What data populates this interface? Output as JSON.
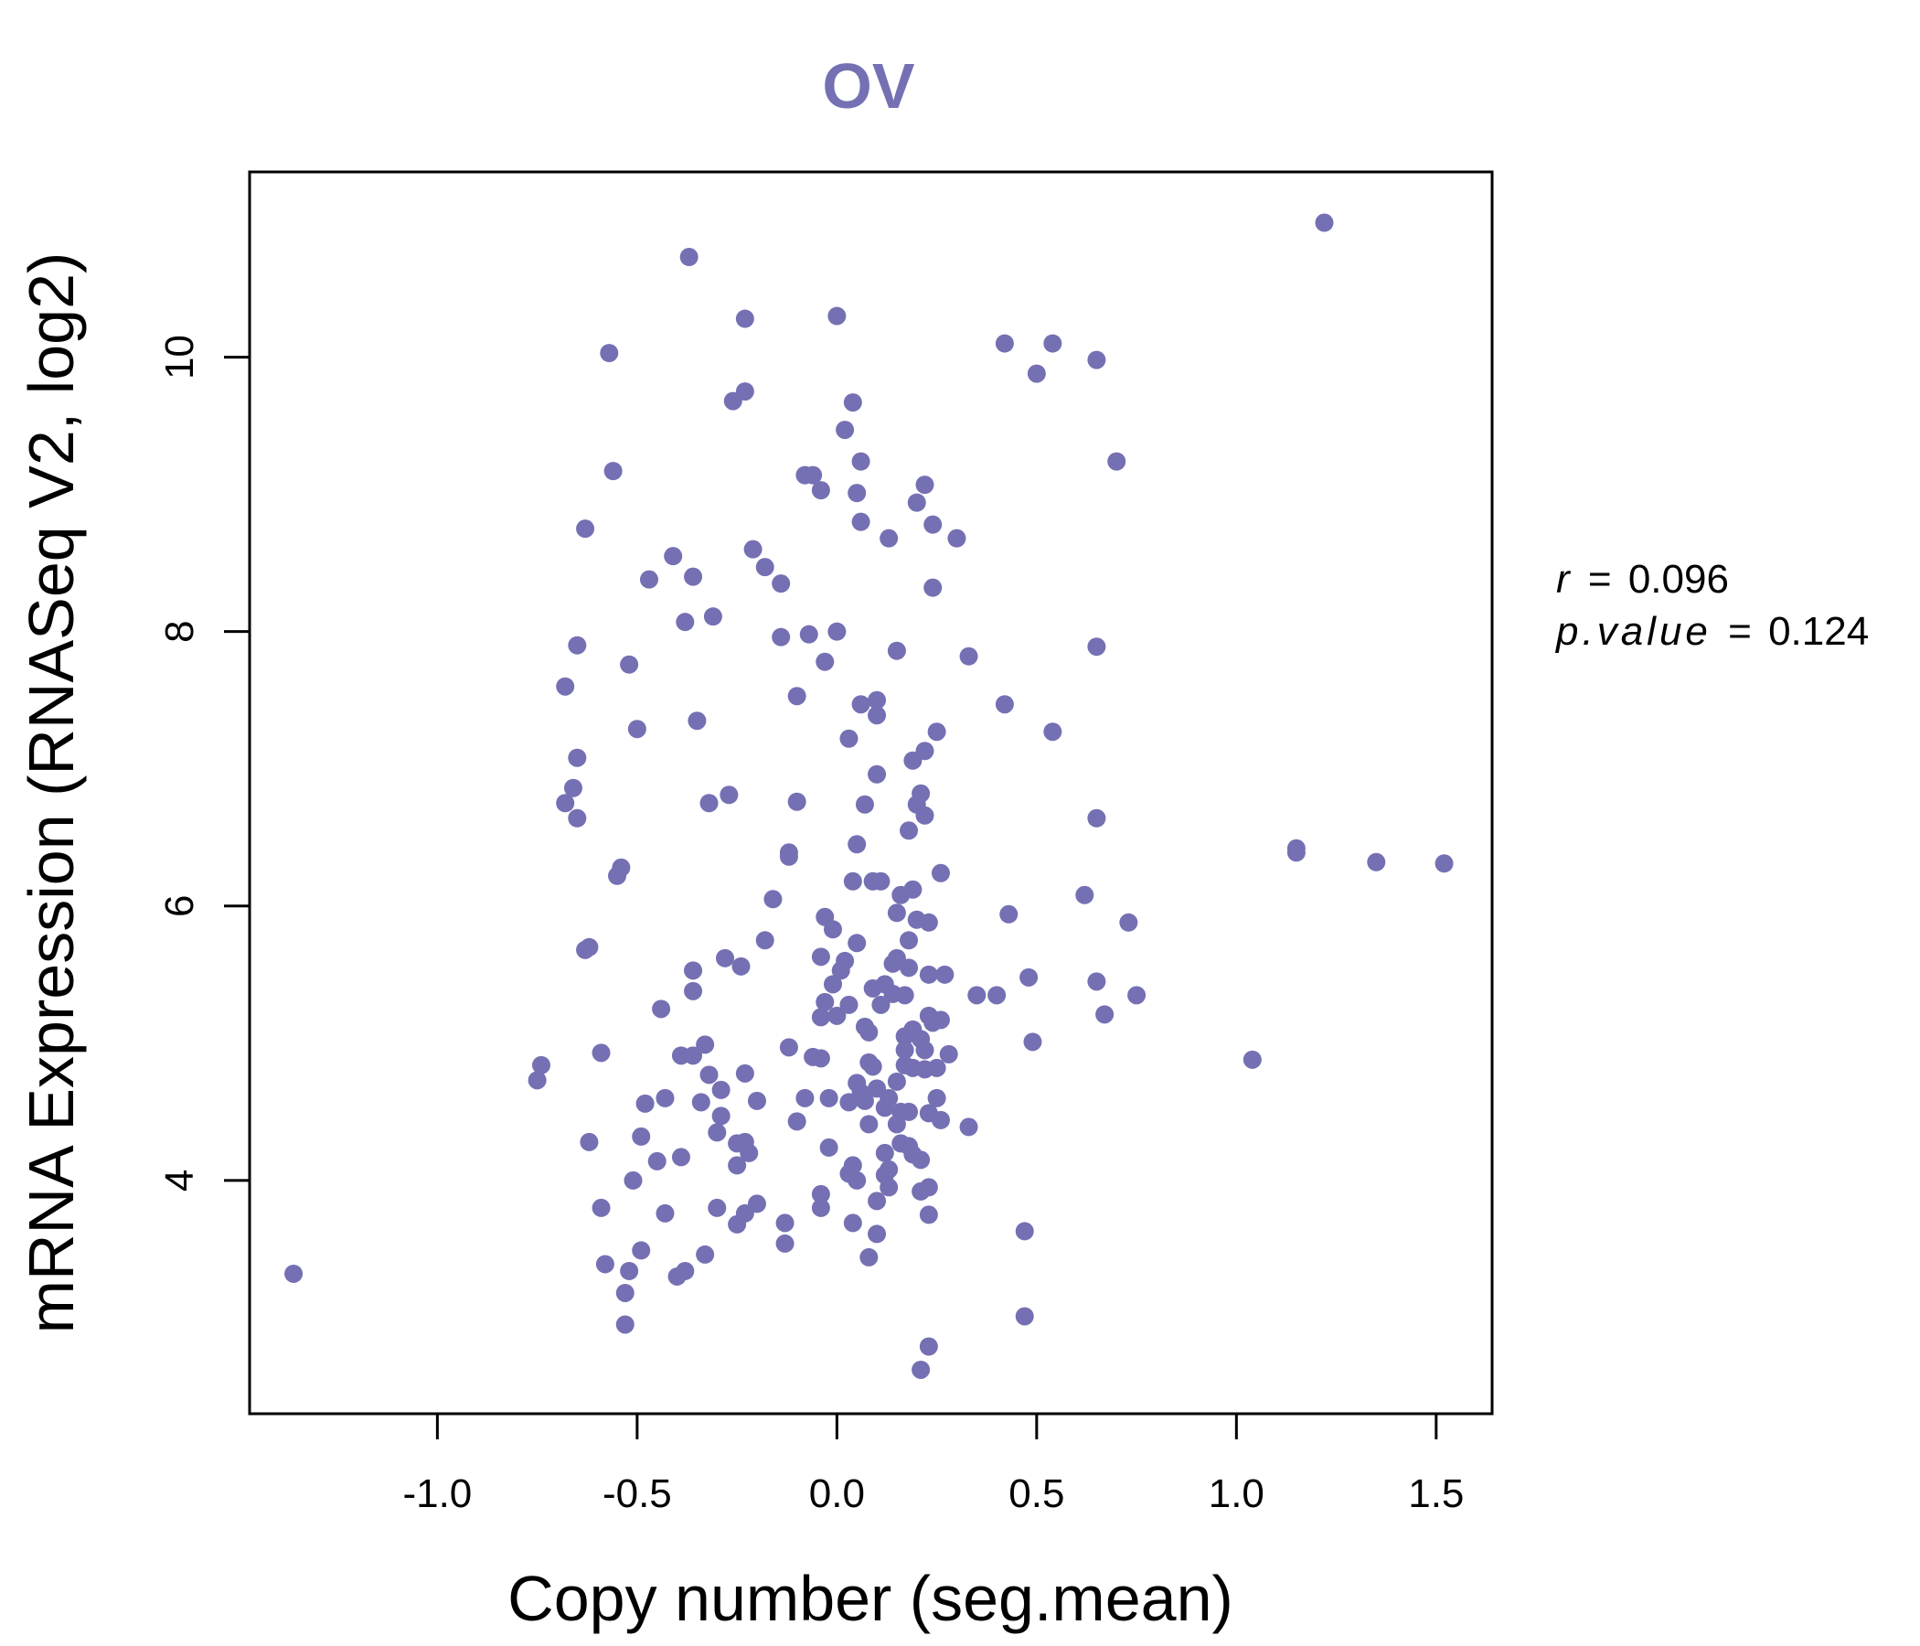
{
  "chart_data": {
    "type": "scatter",
    "title": "OV",
    "xlabel": "Copy number (seg.mean)",
    "ylabel": "mRNA Expression (RNASeq V2, log2)",
    "xlim": [
      -1.47,
      1.64
    ],
    "ylim": [
      2.3,
      11.35
    ],
    "xticks": [
      -1.0,
      -0.5,
      0.0,
      0.5,
      1.0,
      1.5
    ],
    "xtick_labels": [
      "-1.0",
      "-0.5",
      "0.0",
      "0.5",
      "1.0",
      "1.5"
    ],
    "yticks": [
      4,
      6,
      8,
      10
    ],
    "ytick_labels": [
      "4",
      "6",
      "8",
      "10"
    ],
    "grid": false,
    "point_color": "#7570B3",
    "stats": {
      "r_label": "r",
      "r_value": "0.096",
      "p_label": "p.value",
      "p_value": "0.124",
      "equals": "="
    },
    "points": [
      [
        -1.36,
        3.32
      ],
      [
        -0.75,
        4.73
      ],
      [
        -0.74,
        4.84
      ],
      [
        -0.68,
        7.6
      ],
      [
        -0.68,
        6.75
      ],
      [
        -0.66,
        6.86
      ],
      [
        -0.65,
        7.08
      ],
      [
        -0.65,
        6.64
      ],
      [
        -0.65,
        7.9
      ],
      [
        -0.63,
        8.75
      ],
      [
        -0.63,
        5.68
      ],
      [
        -0.62,
        5.7
      ],
      [
        -0.62,
        4.28
      ],
      [
        -0.59,
        4.93
      ],
      [
        -0.59,
        3.8
      ],
      [
        -0.58,
        3.39
      ],
      [
        -0.57,
        10.03
      ],
      [
        -0.56,
        9.17
      ],
      [
        -0.55,
        6.22
      ],
      [
        -0.54,
        6.28
      ],
      [
        -0.53,
        3.18
      ],
      [
        -0.53,
        2.95
      ],
      [
        -0.52,
        3.34
      ],
      [
        -0.51,
        4.0
      ],
      [
        -0.52,
        7.76
      ],
      [
        -0.5,
        7.29
      ],
      [
        -0.49,
        3.49
      ],
      [
        -0.49,
        4.32
      ],
      [
        -0.48,
        4.56
      ],
      [
        -0.47,
        8.38
      ],
      [
        -0.45,
        4.14
      ],
      [
        -0.44,
        5.25
      ],
      [
        -0.43,
        4.6
      ],
      [
        -0.43,
        3.76
      ],
      [
        -0.41,
        8.55
      ],
      [
        -0.4,
        3.3
      ],
      [
        -0.39,
        4.17
      ],
      [
        -0.39,
        4.91
      ],
      [
        -0.38,
        3.34
      ],
      [
        -0.38,
        8.07
      ],
      [
        -0.37,
        10.73
      ],
      [
        -0.36,
        4.91
      ],
      [
        -0.36,
        8.4
      ],
      [
        -0.36,
        5.38
      ],
      [
        -0.36,
        5.53
      ],
      [
        -0.35,
        7.35
      ],
      [
        -0.34,
        4.57
      ],
      [
        -0.33,
        3.46
      ],
      [
        -0.33,
        4.99
      ],
      [
        -0.32,
        4.77
      ],
      [
        -0.32,
        6.75
      ],
      [
        -0.31,
        8.11
      ],
      [
        -0.3,
        3.8
      ],
      [
        -0.3,
        4.35
      ],
      [
        -0.29,
        4.47
      ],
      [
        -0.29,
        4.66
      ],
      [
        -0.28,
        5.62
      ],
      [
        -0.27,
        6.81
      ],
      [
        -0.26,
        9.68
      ],
      [
        -0.25,
        3.68
      ],
      [
        -0.25,
        4.27
      ],
      [
        -0.25,
        4.11
      ],
      [
        -0.24,
        5.56
      ],
      [
        -0.23,
        10.28
      ],
      [
        -0.23,
        4.78
      ],
      [
        -0.23,
        4.28
      ],
      [
        -0.23,
        3.76
      ],
      [
        -0.23,
        9.75
      ],
      [
        -0.22,
        4.2
      ],
      [
        -0.21,
        8.6
      ],
      [
        -0.2,
        3.83
      ],
      [
        -0.2,
        4.58
      ],
      [
        -0.18,
        8.47
      ],
      [
        -0.18,
        5.75
      ],
      [
        -0.16,
        6.05
      ],
      [
        -0.14,
        7.96
      ],
      [
        -0.14,
        8.35
      ],
      [
        -0.13,
        3.54
      ],
      [
        -0.13,
        3.69
      ],
      [
        -0.12,
        4.97
      ],
      [
        -0.12,
        6.36
      ],
      [
        -0.12,
        6.39
      ],
      [
        -0.1,
        6.76
      ],
      [
        -0.1,
        4.43
      ],
      [
        -0.1,
        7.53
      ],
      [
        -0.08,
        4.6
      ],
      [
        -0.08,
        9.14
      ],
      [
        -0.07,
        7.98
      ],
      [
        -0.06,
        9.14
      ],
      [
        -0.06,
        4.9
      ],
      [
        -0.04,
        3.8
      ],
      [
        -0.04,
        3.9
      ],
      [
        -0.04,
        5.63
      ],
      [
        -0.04,
        5.19
      ],
      [
        -0.04,
        9.03
      ],
      [
        -0.04,
        4.89
      ],
      [
        -0.03,
        5.92
      ],
      [
        -0.03,
        7.78
      ],
      [
        -0.03,
        5.3
      ],
      [
        -0.02,
        4.6
      ],
      [
        -0.02,
        4.24
      ],
      [
        -0.01,
        5.43
      ],
      [
        -0.01,
        5.83
      ],
      [
        0.0,
        5.2
      ],
      [
        0.0,
        8.0
      ],
      [
        0.0,
        10.3
      ],
      [
        0.01,
        5.53
      ],
      [
        0.02,
        5.6
      ],
      [
        0.02,
        9.47
      ],
      [
        0.03,
        5.28
      ],
      [
        0.03,
        4.57
      ],
      [
        0.03,
        4.05
      ],
      [
        0.03,
        7.22
      ],
      [
        0.04,
        9.67
      ],
      [
        0.04,
        4.11
      ],
      [
        0.04,
        3.69
      ],
      [
        0.04,
        6.18
      ],
      [
        0.05,
        9.01
      ],
      [
        0.05,
        5.73
      ],
      [
        0.05,
        4.71
      ],
      [
        0.05,
        6.45
      ],
      [
        0.05,
        4.0
      ],
      [
        0.06,
        4.64
      ],
      [
        0.06,
        9.24
      ],
      [
        0.06,
        7.47
      ],
      [
        0.06,
        8.8
      ],
      [
        0.07,
        6.74
      ],
      [
        0.07,
        5.12
      ],
      [
        0.07,
        4.58
      ],
      [
        0.08,
        3.44
      ],
      [
        0.08,
        5.08
      ],
      [
        0.08,
        4.41
      ],
      [
        0.08,
        4.86
      ],
      [
        0.09,
        4.83
      ],
      [
        0.09,
        5.4
      ],
      [
        0.09,
        6.18
      ],
      [
        0.1,
        7.5
      ],
      [
        0.1,
        7.39
      ],
      [
        0.1,
        6.96
      ],
      [
        0.1,
        4.67
      ],
      [
        0.1,
        3.85
      ],
      [
        0.1,
        3.61
      ],
      [
        0.11,
        5.28
      ],
      [
        0.11,
        6.18
      ],
      [
        0.12,
        4.53
      ],
      [
        0.12,
        5.43
      ],
      [
        0.12,
        4.2
      ],
      [
        0.12,
        4.04
      ],
      [
        0.13,
        4.08
      ],
      [
        0.13,
        3.95
      ],
      [
        0.13,
        4.6
      ],
      [
        0.13,
        8.68
      ],
      [
        0.14,
        5.36
      ],
      [
        0.14,
        5.58
      ],
      [
        0.15,
        7.86
      ],
      [
        0.15,
        4.72
      ],
      [
        0.15,
        5.95
      ],
      [
        0.15,
        4.41
      ],
      [
        0.15,
        5.62
      ],
      [
        0.16,
        4.5
      ],
      [
        0.16,
        6.08
      ],
      [
        0.16,
        4.27
      ],
      [
        0.17,
        5.35
      ],
      [
        0.17,
        4.95
      ],
      [
        0.17,
        5.05
      ],
      [
        0.17,
        4.84
      ],
      [
        0.18,
        6.55
      ],
      [
        0.18,
        5.55
      ],
      [
        0.18,
        5.75
      ],
      [
        0.18,
        4.5
      ],
      [
        0.18,
        4.25
      ],
      [
        0.19,
        6.12
      ],
      [
        0.19,
        5.1
      ],
      [
        0.19,
        4.82
      ],
      [
        0.19,
        4.19
      ],
      [
        0.19,
        7.06
      ],
      [
        0.2,
        8.94
      ],
      [
        0.2,
        6.74
      ],
      [
        0.2,
        5.9
      ],
      [
        0.21,
        4.15
      ],
      [
        0.21,
        6.82
      ],
      [
        0.21,
        5.03
      ],
      [
        0.21,
        3.92
      ],
      [
        0.21,
        2.62
      ],
      [
        0.22,
        9.07
      ],
      [
        0.22,
        7.13
      ],
      [
        0.22,
        6.66
      ],
      [
        0.22,
        4.81
      ],
      [
        0.22,
        4.95
      ],
      [
        0.23,
        5.5
      ],
      [
        0.23,
        4.49
      ],
      [
        0.23,
        3.95
      ],
      [
        0.23,
        3.75
      ],
      [
        0.23,
        5.2
      ],
      [
        0.23,
        5.88
      ],
      [
        0.23,
        2.79
      ],
      [
        0.24,
        8.78
      ],
      [
        0.24,
        8.32
      ],
      [
        0.24,
        5.15
      ],
      [
        0.25,
        7.27
      ],
      [
        0.25,
        4.6
      ],
      [
        0.25,
        4.82
      ],
      [
        0.26,
        6.24
      ],
      [
        0.26,
        5.17
      ],
      [
        0.26,
        4.44
      ],
      [
        0.27,
        5.5
      ],
      [
        0.28,
        4.92
      ],
      [
        0.3,
        8.68
      ],
      [
        0.33,
        4.39
      ],
      [
        0.33,
        7.82
      ],
      [
        0.35,
        5.35
      ],
      [
        0.4,
        5.35
      ],
      [
        0.42,
        7.47
      ],
      [
        0.42,
        10.1
      ],
      [
        0.43,
        5.94
      ],
      [
        0.47,
        3.63
      ],
      [
        0.47,
        3.01
      ],
      [
        0.48,
        5.48
      ],
      [
        0.49,
        5.01
      ],
      [
        0.5,
        9.88
      ],
      [
        0.54,
        10.1
      ],
      [
        0.54,
        7.27
      ],
      [
        0.62,
        6.08
      ],
      [
        0.65,
        7.89
      ],
      [
        0.65,
        5.45
      ],
      [
        0.65,
        6.64
      ],
      [
        0.65,
        9.98
      ],
      [
        0.67,
        5.21
      ],
      [
        0.7,
        9.24
      ],
      [
        0.73,
        5.88
      ],
      [
        0.75,
        5.35
      ],
      [
        1.04,
        4.88
      ],
      [
        1.15,
        6.42
      ],
      [
        1.15,
        6.39
      ],
      [
        1.22,
        10.98
      ],
      [
        1.35,
        6.32
      ],
      [
        1.52,
        6.31
      ]
    ]
  }
}
